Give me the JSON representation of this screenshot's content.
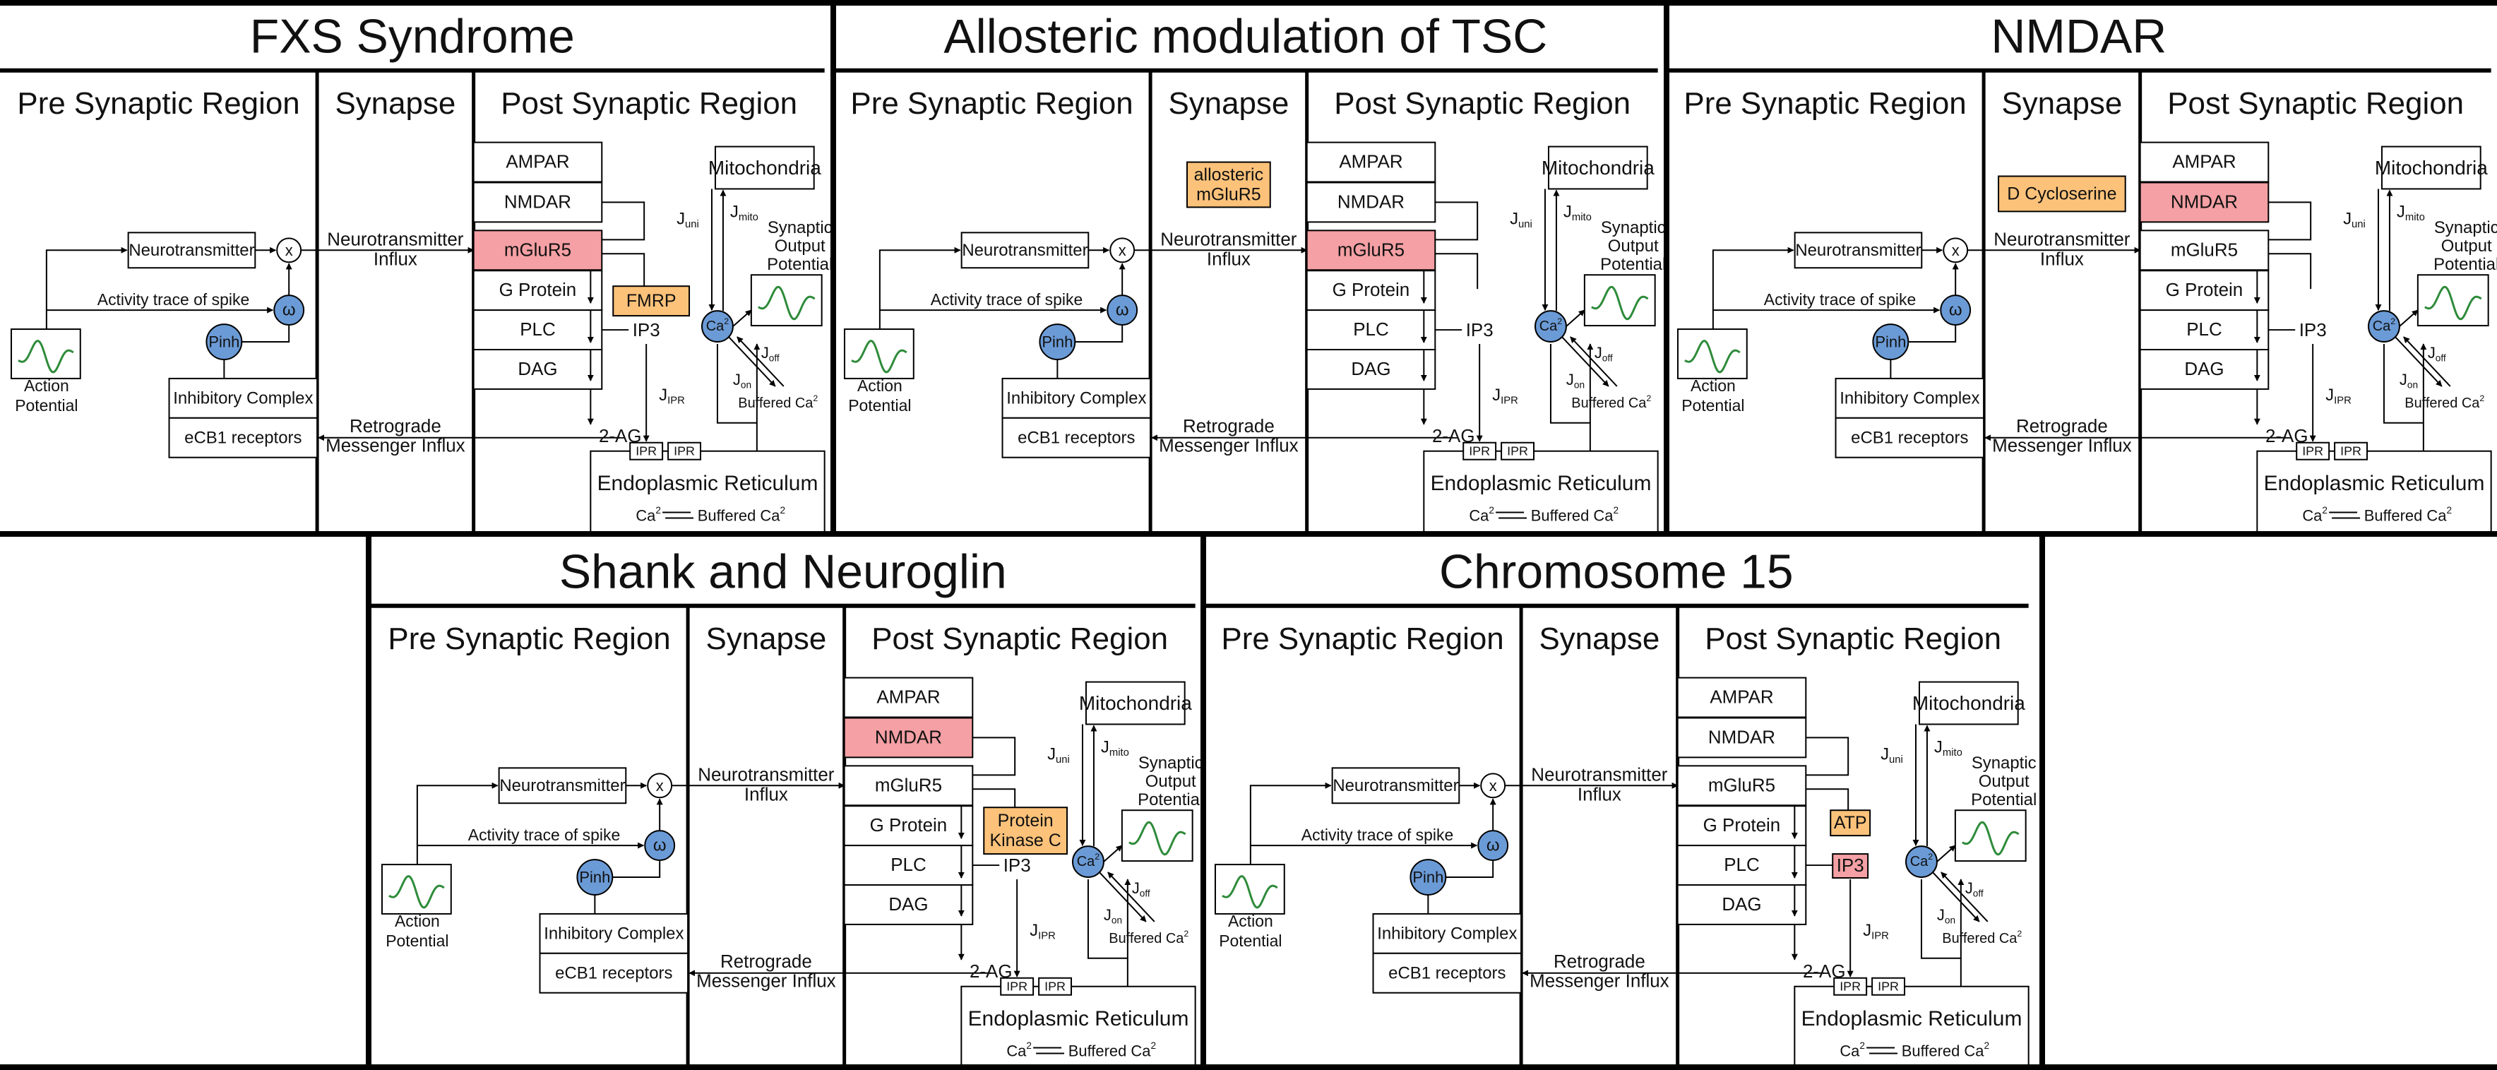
{
  "labels": {
    "pre": "Pre Synaptic Region",
    "synapse": "Synapse",
    "post": "Post Synaptic Region",
    "neurotransmitter": "Neurotransmitter",
    "x_node": "x",
    "omega_node": "ω",
    "activity_trace": "Activity trace of spike",
    "pinh": "Pinh",
    "action_potential_l1": "Action",
    "action_potential_l2": "Potential",
    "inhibitory_complex": "Inhibitory Complex",
    "ecb1_receptors": "eCB1 receptors",
    "neuro_influx_l1": "Neurotransmitter",
    "neuro_influx_l2": "Influx",
    "retro_l1": "Retrograde",
    "retro_l2": "Messenger Influx",
    "ampar": "AMPAR",
    "nmdar": "NMDAR",
    "mglur5": "mGluR5",
    "g_protein": "G Protein",
    "plc": "PLC",
    "dag": "DAG",
    "ip3": "IP3",
    "two_ag": "2-AG",
    "ipr": "IPR",
    "mitochondria": "Mitochondria",
    "j_uni": "J",
    "j_uni_sub": "uni",
    "j_mito": "J",
    "j_mito_sub": "mito",
    "j_ipr": "J",
    "j_ipr_sub": "IPR",
    "j_on": "J",
    "j_on_sub": "on",
    "j_off": "J",
    "j_off_sub": "off",
    "ca": "Ca",
    "ca_sup": "2",
    "buffered_ca": "Buffered Ca",
    "synaptic_output_l1": "Synaptic",
    "synaptic_output_l2": "Output",
    "synaptic_output_l3": "Potential",
    "er": "Endoplasmic Reticulum",
    "er_ca": "Ca",
    "er_buffered": "Buffered Ca"
  },
  "panels": [
    {
      "title": "FXS Syndrome",
      "highlight": "mglur5",
      "annotation": {
        "lines": [
          "FMRP"
        ],
        "place": "gprotein"
      }
    },
    {
      "title": "Allosteric modulation of TSC",
      "highlight": "mglur5",
      "annotation": {
        "lines": [
          "allosteric",
          "mGluR5"
        ],
        "place": "synapse"
      }
    },
    {
      "title": "NMDAR",
      "highlight": "nmdar",
      "annotation": {
        "lines": [
          "D Cycloserine"
        ],
        "place": "synapse"
      }
    },
    {
      "title": "Shank and Neuroglin",
      "highlight": "nmdar",
      "annotation": {
        "lines": [
          "Protein",
          "Kinase C"
        ],
        "place": "gprotein"
      }
    },
    {
      "title": "Chromosome 15",
      "highlight": "ip3",
      "annotation": {
        "lines": [
          "ATP"
        ],
        "place": "ip3top"
      }
    }
  ],
  "colors": {
    "highlight": "#f4a0a4",
    "annotation": "#fcc27a",
    "node": "#6b9bd6",
    "trace": "#2e8b3a",
    "border": "#000000"
  }
}
